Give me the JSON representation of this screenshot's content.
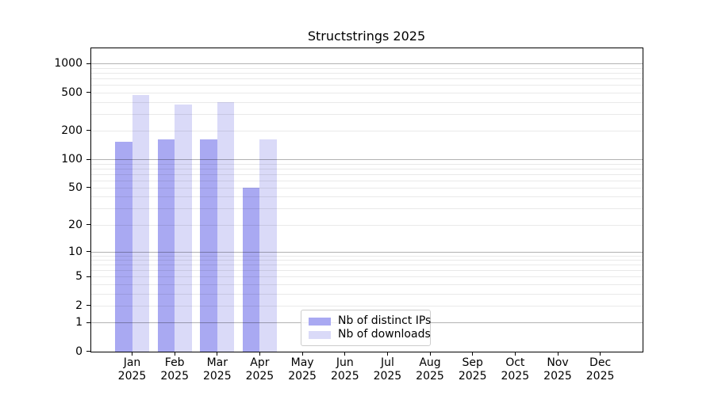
{
  "chart_data": {
    "type": "bar",
    "title": "Structstrings 2025",
    "xlabel": "",
    "ylabel": "",
    "year": "2025",
    "categories": [
      "Jan",
      "Feb",
      "Mar",
      "Apr",
      "May",
      "Jun",
      "Jul",
      "Aug",
      "Sep",
      "Oct",
      "Nov",
      "Dec"
    ],
    "series": [
      {
        "name": "Nb of distinct IPs",
        "color": "#a9a9f2",
        "values": [
          152,
          161,
          160,
          50,
          0,
          0,
          0,
          0,
          0,
          0,
          0,
          0
        ]
      },
      {
        "name": "Nb of downloads",
        "color": "#dadaf8",
        "values": [
          475,
          373,
          393,
          163,
          0,
          0,
          0,
          0,
          0,
          0,
          0,
          0
        ]
      }
    ],
    "yscale": "log1p",
    "ylim": [
      0,
      1450
    ],
    "yticks": [
      0,
      1,
      2,
      5,
      10,
      20,
      50,
      100,
      200,
      500,
      1000
    ],
    "grid": {
      "major": [
        1,
        10,
        100,
        1000
      ],
      "minor": [
        2,
        3,
        4,
        5,
        6,
        7,
        8,
        9,
        20,
        30,
        40,
        50,
        60,
        70,
        80,
        90,
        200,
        300,
        400,
        500,
        600,
        700,
        800,
        900
      ],
      "major_color": "rgba(0,0,0,0.30)",
      "minor_color": "rgba(0,0,0,0.085)"
    },
    "legend": {
      "position": "lower center",
      "entries": [
        "Nb of distinct IPs",
        "Nb of downloads"
      ]
    },
    "axis_color": "#000000",
    "background": "#ffffff"
  }
}
